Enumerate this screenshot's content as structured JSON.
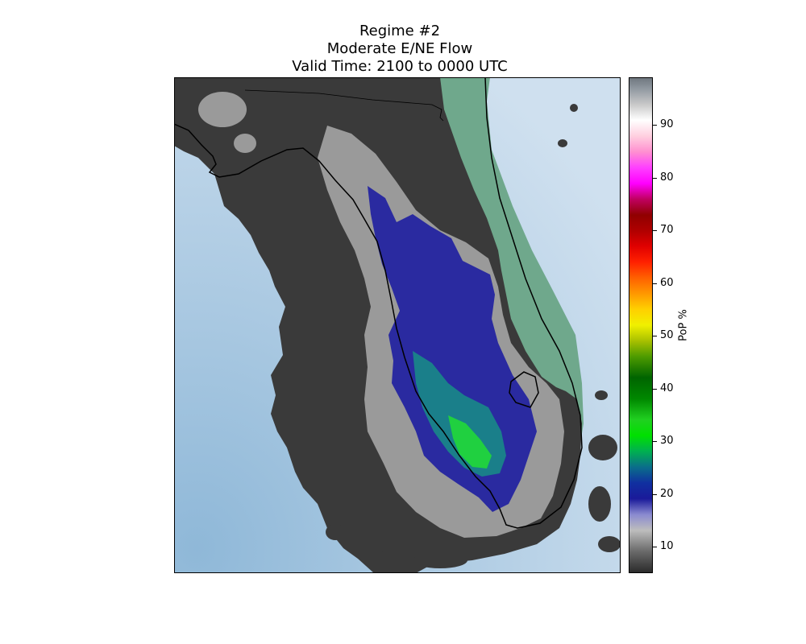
{
  "title_lines": [
    "Regime #2",
    "Moderate E/NE Flow",
    "Valid Time: 2100 to 0000 UTC"
  ],
  "colorbar": {
    "label": "PoP %",
    "range": [
      5,
      99
    ],
    "ticks": [
      "10",
      "20",
      "30",
      "40",
      "50",
      "60",
      "70",
      "80",
      "90"
    ],
    "stops": [
      {
        "v": 5,
        "c": "#2b2b2b"
      },
      {
        "v": 9,
        "c": "#6b6b6b"
      },
      {
        "v": 13,
        "c": "#bdbdbd"
      },
      {
        "v": 16,
        "c": "#8a8ad0"
      },
      {
        "v": 19,
        "c": "#1a1a9a"
      },
      {
        "v": 22,
        "c": "#1030a0"
      },
      {
        "v": 25,
        "c": "#0a6e8a"
      },
      {
        "v": 28,
        "c": "#00b050"
      },
      {
        "v": 31,
        "c": "#00e000"
      },
      {
        "v": 34,
        "c": "#20d020"
      },
      {
        "v": 38,
        "c": "#008800"
      },
      {
        "v": 42,
        "c": "#006400"
      },
      {
        "v": 46,
        "c": "#4c9a00"
      },
      {
        "v": 49,
        "c": "#a8c000"
      },
      {
        "v": 52,
        "c": "#f0f000"
      },
      {
        "v": 55,
        "c": "#ffd000"
      },
      {
        "v": 58,
        "c": "#ff9800"
      },
      {
        "v": 61,
        "c": "#ff6000"
      },
      {
        "v": 64,
        "c": "#ff2000"
      },
      {
        "v": 67,
        "c": "#e00000"
      },
      {
        "v": 70,
        "c": "#b00000"
      },
      {
        "v": 73,
        "c": "#900000"
      },
      {
        "v": 76,
        "c": "#c00060"
      },
      {
        "v": 79,
        "c": "#ff00ff"
      },
      {
        "v": 82,
        "c": "#ff40ff"
      },
      {
        "v": 85,
        "c": "#ff90d0"
      },
      {
        "v": 88,
        "c": "#ffd0e0"
      },
      {
        "v": 91,
        "c": "#ffffff"
      },
      {
        "v": 94,
        "c": "#c8c8c8"
      },
      {
        "v": 97,
        "c": "#9098a0"
      },
      {
        "v": 99,
        "c": "#707880"
      }
    ]
  },
  "colors": {
    "ocean_light": "#cfe0ef",
    "ocean_dark": "#8fb8d8",
    "land_green": "#6fa88c",
    "pop_dark": "#3a3a3a",
    "pop_gray": "#9a9a9a",
    "pop_blue": "#2a2aa0",
    "pop_teal": "#1a7f8a",
    "pop_green": "#20d040",
    "coast": "#000000"
  }
}
